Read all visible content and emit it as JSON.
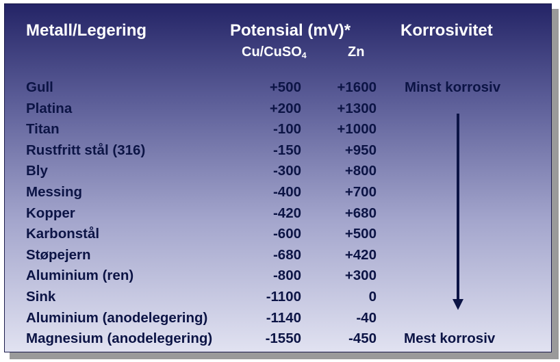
{
  "header": {
    "metal_label": "Metall/Legering",
    "potential_label": "Potensial (mV)*",
    "ref1_prefix": "Cu/CuSO",
    "ref1_subscript": "4",
    "ref2": "Zn",
    "corrosivity_label": "Korrosivitet"
  },
  "rows": [
    {
      "metal": "Gull",
      "cu": "+500",
      "zn": "+1600"
    },
    {
      "metal": "Platina",
      "cu": "+200",
      "zn": "+1300"
    },
    {
      "metal": "Titan",
      "cu": "-100",
      "zn": "+1000"
    },
    {
      "metal": "Rustfritt stål (316)",
      "cu": "-150",
      "zn": "+950"
    },
    {
      "metal": "Bly",
      "cu": "-300",
      "zn": "+800"
    },
    {
      "metal": "Messing",
      "cu": "-400",
      "zn": "+700"
    },
    {
      "metal": "Kopper",
      "cu": "-420",
      "zn": "+680"
    },
    {
      "metal": "Karbonstål",
      "cu": "-600",
      "zn": "+500"
    },
    {
      "metal": "Støpejern",
      "cu": "-680",
      "zn": "+420"
    },
    {
      "metal": "Aluminium (ren)",
      "cu": "-800",
      "zn": "+300"
    },
    {
      "metal": "Sink",
      "cu": "-1100",
      "zn": "0"
    },
    {
      "metal": "Aluminium (anodelegering)",
      "cu": "-1140",
      "zn": "-40"
    },
    {
      "metal": "Magnesium (anodelegering)",
      "cu": "-1550",
      "zn": "-450"
    }
  ],
  "scale": {
    "least_label": "Minst korrosiv",
    "most_label": "Mest korrosiv"
  },
  "colors": {
    "heading": "#ffffff",
    "body_text": "#0c1445",
    "panel_top": "#242466",
    "panel_bottom": "#e1e2f1"
  },
  "icons": {
    "arrow": "down-arrow-icon"
  }
}
